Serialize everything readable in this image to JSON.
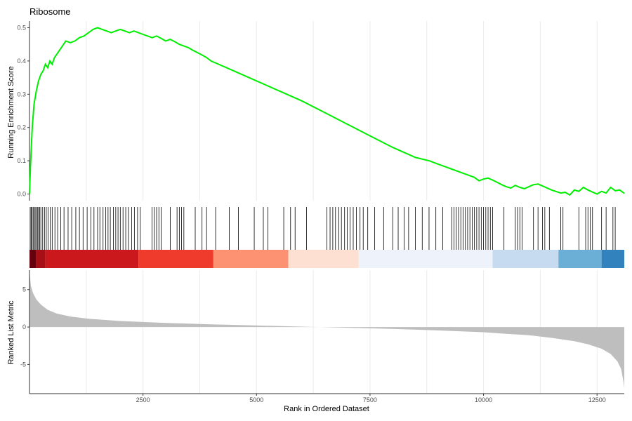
{
  "chart_data": {
    "type": "line",
    "title": "Ribosome",
    "xlabel": "Rank in Ordered Dataset",
    "xlim": [
      0,
      13100
    ],
    "x_ticks": [
      2500,
      5000,
      7500,
      10000,
      12500
    ],
    "grid": "vertical",
    "colors": {
      "line": "#00ee00",
      "hits": "#000000",
      "metric_fill": "#bebebe",
      "axis": "#333333",
      "grid": "#ebebeb"
    },
    "panels": [
      {
        "name": "running_score",
        "ylabel": "Running Enrichment Score",
        "ylim": [
          -0.02,
          0.52
        ],
        "y_ticks": [
          0.0,
          0.1,
          0.2,
          0.3,
          0.4,
          0.5
        ],
        "series": [
          {
            "x": [
              0,
              20,
              60,
              100,
              150,
              200,
              250,
              300,
              350,
              400,
              450,
              500,
              550,
              600,
              650,
              700,
              800,
              900,
              1000,
              1100,
              1200,
              1300,
              1400,
              1500,
              1600,
              1700,
              1800,
              1900,
              2000,
              2100,
              2200,
              2300,
              2400,
              2500,
              2600,
              2700,
              2800,
              2900,
              3000,
              3100,
              3200,
              3300,
              3400,
              3500,
              3600,
              3700,
              3800,
              3900,
              4000,
              4500,
              5000,
              5500,
              6000,
              6500,
              7000,
              7500,
              8000,
              8500,
              8800,
              9000,
              9300,
              9600,
              9800,
              9900,
              10000,
              10100,
              10200,
              10300,
              10400,
              10500,
              10600,
              10700,
              10800,
              10900,
              11000,
              11100,
              11200,
              11300,
              11500,
              11700,
              11800,
              11900,
              12000,
              12100,
              12200,
              12300,
              12400,
              12500,
              12600,
              12700,
              12800,
              12900,
              13000,
              13100
            ],
            "values": [
              0.0,
              0.08,
              0.2,
              0.27,
              0.31,
              0.34,
              0.36,
              0.37,
              0.39,
              0.38,
              0.4,
              0.39,
              0.41,
              0.42,
              0.43,
              0.44,
              0.46,
              0.455,
              0.46,
              0.47,
              0.475,
              0.485,
              0.495,
              0.5,
              0.495,
              0.49,
              0.485,
              0.49,
              0.495,
              0.49,
              0.485,
              0.49,
              0.485,
              0.48,
              0.475,
              0.47,
              0.475,
              0.468,
              0.46,
              0.465,
              0.458,
              0.45,
              0.445,
              0.44,
              0.432,
              0.425,
              0.418,
              0.41,
              0.4,
              0.37,
              0.34,
              0.31,
              0.28,
              0.245,
              0.21,
              0.175,
              0.14,
              0.11,
              0.1,
              0.09,
              0.075,
              0.06,
              0.05,
              0.04,
              0.045,
              0.048,
              0.042,
              0.035,
              0.028,
              0.022,
              0.018,
              0.026,
              0.02,
              0.016,
              0.022,
              0.028,
              0.03,
              0.024,
              0.012,
              0.003,
              0.005,
              -0.003,
              0.012,
              0.008,
              0.02,
              0.012,
              0.006,
              0.0,
              0.008,
              0.003,
              0.02,
              0.01,
              0.012,
              0.002
            ]
          }
        ]
      },
      {
        "name": "gene_hits",
        "hit_ranks": [
          15,
          35,
          55,
          80,
          100,
          125,
          150,
          175,
          200,
          225,
          250,
          290,
          330,
          370,
          410,
          455,
          500,
          560,
          620,
          690,
          760,
          850,
          930,
          1020,
          1100,
          1180,
          1270,
          1350,
          1420,
          1500,
          1550,
          1620,
          1680,
          1730,
          1780,
          1850,
          1900,
          1950,
          2000,
          2060,
          2120,
          2180,
          2250,
          2310,
          2380,
          2440,
          2700,
          2750,
          2800,
          2850,
          2900,
          3100,
          3250,
          3300,
          3350,
          3400,
          3650,
          3800,
          3900,
          4100,
          4400,
          4600,
          4950,
          5150,
          5250,
          5600,
          5750,
          5850,
          6100,
          6550,
          6620,
          6680,
          6740,
          6810,
          6870,
          6940,
          7000,
          7060,
          7130,
          7200,
          7280,
          7350,
          7450,
          7600,
          7800,
          8000,
          8120,
          8250,
          8350,
          8500,
          8650,
          8800,
          8950,
          9100,
          9300,
          9350,
          9400,
          9450,
          9500,
          9550,
          9600,
          9650,
          9700,
          9750,
          9800,
          9850,
          9900,
          9950,
          10000,
          10050,
          10100,
          10150,
          10200,
          10450,
          10700,
          10750,
          10800,
          10850,
          11100,
          11200,
          11300,
          11350,
          11450,
          11700,
          11750,
          12100,
          12250,
          12300,
          12350,
          12400,
          12600,
          12700,
          12850,
          12900
        ]
      },
      {
        "name": "ranked_metric",
        "ylabel": "Ranked List Metric",
        "ylim": [
          -8.9,
          7.6
        ],
        "y_ticks": [
          -5,
          0,
          5
        ],
        "series": [
          {
            "x": [
              0,
              30,
              80,
              150,
              250,
              400,
              600,
              900,
              1300,
              2000,
              3000,
              4000,
              5000,
              6000,
              7000,
              8000,
              9000,
              10000,
              10500,
              11000,
              11500,
              12000,
              12300,
              12600,
              12800,
              12950,
              13030,
              13080,
              13100
            ],
            "values": [
              7.6,
              5.5,
              4.5,
              3.7,
              3.0,
              2.3,
              1.8,
              1.4,
              1.1,
              0.8,
              0.55,
              0.35,
              0.2,
              0.05,
              -0.1,
              -0.25,
              -0.45,
              -0.7,
              -0.9,
              -1.1,
              -1.45,
              -1.9,
              -2.3,
              -2.9,
              -3.6,
              -4.6,
              -5.6,
              -7.2,
              -8.2
            ]
          }
        ]
      }
    ]
  }
}
